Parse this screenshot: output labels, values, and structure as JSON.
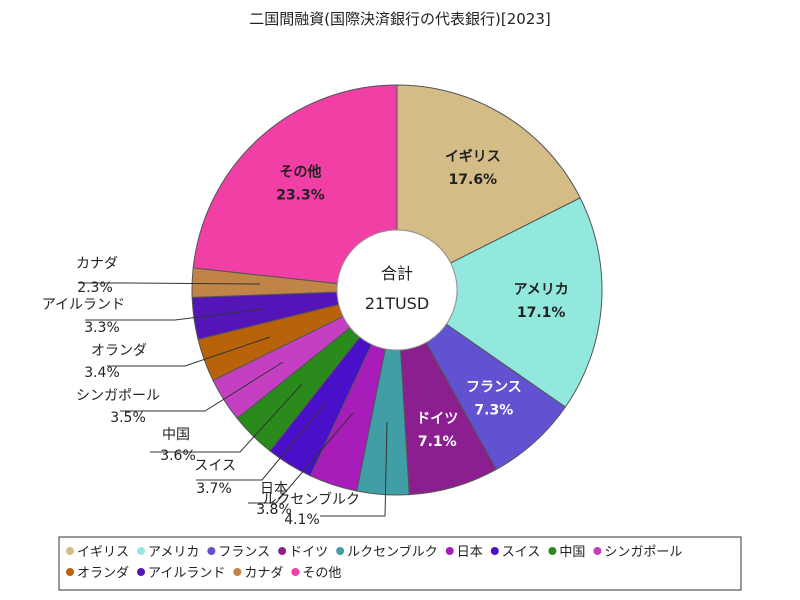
{
  "chart_data": {
    "type": "pie",
    "title": "二国間融資(国際決済銀行の代表銀行)[2023]",
    "center_label": "合計",
    "center_value": "21TUSD",
    "slices": [
      {
        "label": "イギリス",
        "value": 17.6,
        "percent_text": "17.6%",
        "color": "#d4bc87"
      },
      {
        "label": "アメリカ",
        "value": 17.1,
        "percent_text": "17.1%",
        "color": "#93e8de"
      },
      {
        "label": "フランス",
        "value": 7.3,
        "percent_text": "7.3%",
        "color": "#6052d1"
      },
      {
        "label": "ドイツ",
        "value": 7.1,
        "percent_text": "7.1%",
        "color": "#8c1f8f"
      },
      {
        "label": "ルクセンブルク",
        "value": 4.1,
        "percent_text": "4.1%",
        "color": "#3f9ea6"
      },
      {
        "label": "日本",
        "value": 3.8,
        "percent_text": "3.8%",
        "color": "#a81cba"
      },
      {
        "label": "スイス",
        "value": 3.7,
        "percent_text": "3.7%",
        "color": "#4a10c9"
      },
      {
        "label": "中国",
        "value": 3.6,
        "percent_text": "3.6%",
        "color": "#2a8a1c"
      },
      {
        "label": "シンガポール",
        "value": 3.5,
        "percent_text": "3.5%",
        "color": "#c43fc2"
      },
      {
        "label": "オランダ",
        "value": 3.4,
        "percent_text": "3.4%",
        "color": "#b8620a"
      },
      {
        "label": "アイルランド",
        "value": 3.3,
        "percent_text": "3.3%",
        "color": "#5514b8"
      },
      {
        "label": "カナダ",
        "value": 2.3,
        "percent_text": "2.3%",
        "color": "#c08446"
      },
      {
        "label": "その他",
        "value": 23.3,
        "percent_text": "23.3%",
        "color": "#f23fa6"
      }
    ],
    "legend_position": "bottom"
  }
}
